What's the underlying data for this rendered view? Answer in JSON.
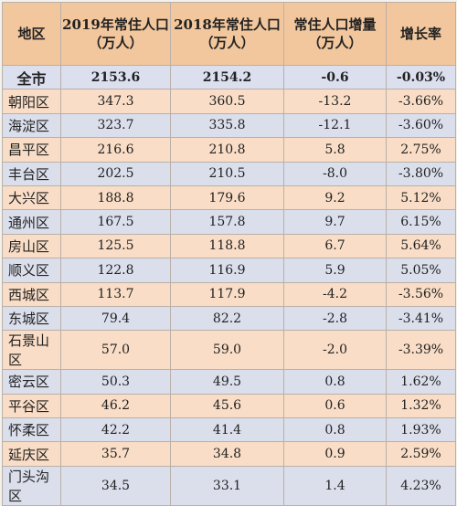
{
  "headers": {
    "district": "地区",
    "pop2019_line1": "2019年常住人口",
    "pop2019_line2": "（万人）",
    "pop2018_line1": "2018年常住人口",
    "pop2018_line2": "（万人）",
    "increase_line1": "常住人口增量",
    "increase_line2": "（万人）",
    "growth": "增长率"
  },
  "total": {
    "name": "全市",
    "pop2019": "2153.6",
    "pop2018": "2154.2",
    "increase": "-0.6",
    "growth": "-0.03%"
  },
  "rows": [
    {
      "name": "朝阳区",
      "pop2019": "347.3",
      "pop2018": "360.5",
      "increase": "-13.2",
      "growth": "-3.66%"
    },
    {
      "name": "海淀区",
      "pop2019": "323.7",
      "pop2018": "335.8",
      "increase": "-12.1",
      "growth": "-3.60%"
    },
    {
      "name": "昌平区",
      "pop2019": "216.6",
      "pop2018": "210.8",
      "increase": "5.8",
      "growth": "2.75%"
    },
    {
      "name": "丰台区",
      "pop2019": "202.5",
      "pop2018": "210.5",
      "increase": "-8.0",
      "growth": "-3.80%"
    },
    {
      "name": "大兴区",
      "pop2019": "188.8",
      "pop2018": "179.6",
      "increase": "9.2",
      "growth": "5.12%"
    },
    {
      "name": "通州区",
      "pop2019": "167.5",
      "pop2018": "157.8",
      "increase": "9.7",
      "growth": "6.15%"
    },
    {
      "name": "房山区",
      "pop2019": "125.5",
      "pop2018": "118.8",
      "increase": "6.7",
      "growth": "5.64%"
    },
    {
      "name": "顺义区",
      "pop2019": "122.8",
      "pop2018": "116.9",
      "increase": "5.9",
      "growth": "5.05%"
    },
    {
      "name": "西城区",
      "pop2019": "113.7",
      "pop2018": "117.9",
      "increase": "-4.2",
      "growth": "-3.56%"
    },
    {
      "name": "东城区",
      "pop2019": "79.4",
      "pop2018": "82.2",
      "increase": "-2.8",
      "growth": "-3.41%"
    },
    {
      "name": "石景山区",
      "pop2019": "57.0",
      "pop2018": "59.0",
      "increase": "-2.0",
      "growth": "-3.39%"
    },
    {
      "name": "密云区",
      "pop2019": "50.3",
      "pop2018": "49.5",
      "increase": "0.8",
      "growth": "1.62%"
    },
    {
      "name": "平谷区",
      "pop2019": "46.2",
      "pop2018": "45.6",
      "increase": "0.6",
      "growth": "1.32%"
    },
    {
      "name": "怀柔区",
      "pop2019": "42.2",
      "pop2018": "41.4",
      "increase": "0.8",
      "growth": "1.93%"
    },
    {
      "name": "延庆区",
      "pop2019": "35.7",
      "pop2018": "34.8",
      "increase": "0.9",
      "growth": "2.59%"
    },
    {
      "name": "门头沟区",
      "pop2019": "34.5",
      "pop2018": "33.1",
      "increase": "1.4",
      "growth": "4.23%"
    }
  ]
}
